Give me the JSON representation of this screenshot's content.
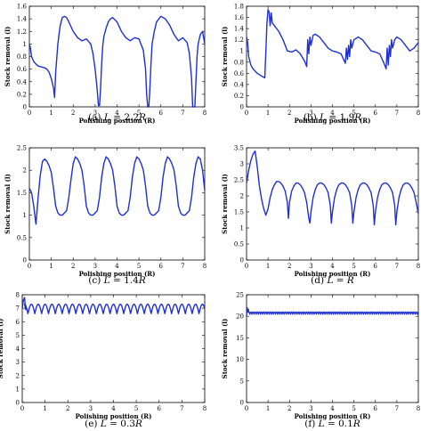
{
  "chart_data": [
    {
      "type": "line",
      "caption_prefix": "(a)",
      "caption_var": "L",
      "caption_eq": " = 2.2",
      "caption_unit": "R",
      "xlabel": "Polishing position (R)",
      "ylabel": "Stock removal (l)",
      "xlim": [
        0,
        8
      ],
      "ylim": [
        0,
        1.6
      ],
      "xticks": [
        0,
        1,
        2,
        3,
        4,
        5,
        6,
        7,
        8
      ],
      "yticks": [
        0,
        0.2,
        0.4,
        0.6,
        0.8,
        1,
        1.2,
        1.4,
        1.6
      ],
      "ytick_labels": [
        "0",
        "0.2",
        "0.4",
        "0.6",
        "0.8",
        "1",
        "1.2",
        "1.4",
        "1.6"
      ],
      "series": [
        {
          "color": "#1f2fd6",
          "x": [
            0,
            0.04,
            0.1,
            0.2,
            0.3,
            0.4,
            0.5,
            0.6,
            0.7,
            0.8,
            0.9,
            1.0,
            1.1,
            1.15,
            1.2,
            1.3,
            1.4,
            1.5,
            1.6,
            1.7,
            1.8,
            2.0,
            2.2,
            2.4,
            2.6,
            2.8,
            2.9,
            3.0,
            3.1,
            3.15,
            3.2,
            3.25,
            3.3,
            3.35,
            3.4,
            3.5,
            3.6,
            3.7,
            3.8,
            4.0,
            4.2,
            4.4,
            4.6,
            4.8,
            5.0,
            5.2,
            5.3,
            5.35,
            5.4,
            5.45,
            5.5,
            5.55,
            5.6,
            5.7,
            5.8,
            6.0,
            6.2,
            6.4,
            6.6,
            6.8,
            7.0,
            7.2,
            7.3,
            7.4,
            7.45,
            7.5,
            7.55,
            7.6,
            7.65,
            7.7,
            7.8,
            7.9,
            8.0
          ],
          "y": [
            1.0,
            0.95,
            0.8,
            0.72,
            0.68,
            0.65,
            0.64,
            0.63,
            0.62,
            0.6,
            0.55,
            0.45,
            0.3,
            0.15,
            0.55,
            1.0,
            1.28,
            1.42,
            1.44,
            1.42,
            1.35,
            1.2,
            1.1,
            1.05,
            1.08,
            1.0,
            0.85,
            0.6,
            0.25,
            0.02,
            0.02,
            0.3,
            0.7,
            0.98,
            1.12,
            1.25,
            1.35,
            1.4,
            1.42,
            1.35,
            1.2,
            1.1,
            1.05,
            1.1,
            1.08,
            0.9,
            0.6,
            0.2,
            0.0,
            0.0,
            0.3,
            0.7,
            1.0,
            1.2,
            1.35,
            1.44,
            1.4,
            1.3,
            1.15,
            1.05,
            1.1,
            1.02,
            0.85,
            0.45,
            0.0,
            0.0,
            0.0,
            0.4,
            0.8,
            1.0,
            1.15,
            1.2,
            1.0
          ]
        }
      ]
    },
    {
      "type": "line",
      "caption_prefix": "(b)",
      "caption_var": "L",
      "caption_eq": " = 1.9",
      "caption_unit": "R",
      "xlabel": "Polishing position (R)",
      "ylabel": "Stock removal (l)",
      "xlim": [
        0,
        8
      ],
      "ylim": [
        0,
        1.8
      ],
      "xticks": [
        0,
        1,
        2,
        3,
        4,
        5,
        6,
        7,
        8
      ],
      "yticks": [
        0,
        0.2,
        0.4,
        0.6,
        0.8,
        1,
        1.2,
        1.4,
        1.6,
        1.8
      ],
      "ytick_labels": [
        "0",
        "0.2",
        "0.4",
        "0.6",
        "0.8",
        "1",
        "1.2",
        "1.4",
        "1.6",
        "1.8"
      ],
      "series": [
        {
          "color": "#1f2fd6",
          "x": [
            0,
            0.05,
            0.1,
            0.2,
            0.3,
            0.5,
            0.7,
            0.85,
            0.9,
            0.95,
            1.0,
            1.05,
            1.1,
            1.15,
            1.2,
            1.3,
            1.5,
            1.7,
            1.9,
            2.1,
            2.3,
            2.5,
            2.7,
            2.8,
            2.85,
            2.9,
            2.95,
            3.0,
            3.1,
            3.2,
            3.4,
            3.6,
            3.8,
            4.0,
            4.2,
            4.4,
            4.6,
            4.65,
            4.7,
            4.75,
            4.8,
            4.85,
            4.9,
            5.0,
            5.2,
            5.4,
            5.6,
            5.8,
            6.0,
            6.2,
            6.4,
            6.5,
            6.55,
            6.6,
            6.65,
            6.7,
            6.75,
            6.8,
            6.9,
            7.0,
            7.2,
            7.4,
            7.6,
            7.8,
            8.0
          ],
          "y": [
            1.25,
            1.15,
            0.9,
            0.75,
            0.68,
            0.6,
            0.55,
            0.52,
            1.0,
            1.5,
            1.74,
            1.7,
            1.45,
            1.68,
            1.5,
            1.45,
            1.35,
            1.2,
            1.0,
            0.98,
            1.02,
            0.95,
            0.82,
            0.72,
            1.2,
            0.95,
            1.25,
            1.1,
            1.28,
            1.3,
            1.25,
            1.15,
            1.05,
            1.0,
            0.98,
            0.95,
            0.78,
            1.05,
            0.85,
            1.1,
            0.9,
            1.2,
            1.05,
            1.2,
            1.25,
            1.2,
            1.1,
            1.0,
            0.98,
            0.95,
            0.78,
            0.68,
            1.05,
            0.75,
            1.1,
            0.9,
            1.2,
            1.05,
            1.2,
            1.25,
            1.2,
            1.1,
            1.0,
            1.05,
            1.15
          ]
        }
      ]
    },
    {
      "type": "line",
      "caption_prefix": "(c)",
      "caption_var": "L",
      "caption_eq": " = 1.4",
      "caption_unit": "R",
      "xlabel": "Polishing position (R)",
      "ylabel": "Stock removal (l)",
      "xlim": [
        0,
        8
      ],
      "ylim": [
        0,
        2.5
      ],
      "xticks": [
        0,
        1,
        2,
        3,
        4,
        5,
        6,
        7,
        8
      ],
      "yticks": [
        0,
        0.5,
        1,
        1.5,
        2,
        2.5
      ],
      "ytick_labels": [
        "0",
        "0.5",
        "1",
        "1.5",
        "2",
        "2.5"
      ],
      "series": [
        {
          "color": "#1f2fd6",
          "x": [
            0,
            0.1,
            0.2,
            0.3,
            0.4,
            0.5,
            0.6,
            0.7,
            0.8,
            0.9,
            1.0,
            1.1,
            1.2,
            1.3,
            1.4,
            1.5,
            1.6,
            1.7,
            1.8,
            1.9,
            2.0,
            2.1,
            2.2,
            2.3,
            2.4,
            2.5,
            2.6,
            2.7,
            2.8,
            2.9,
            3.0,
            3.1,
            3.2,
            3.3,
            3.4,
            3.5,
            3.6,
            3.7,
            3.8,
            3.9,
            4.0,
            4.1,
            4.2,
            4.3,
            4.4,
            4.5,
            4.6,
            4.7,
            4.8,
            4.9,
            5.0,
            5.1,
            5.2,
            5.3,
            5.4,
            5.5,
            5.6,
            5.7,
            5.8,
            5.9,
            6.0,
            6.1,
            6.2,
            6.3,
            6.4,
            6.5,
            6.6,
            6.7,
            6.8,
            6.9,
            7.0,
            7.1,
            7.2,
            7.3,
            7.4,
            7.5,
            7.6,
            7.7,
            7.8,
            7.9,
            8.0
          ],
          "y": [
            1.6,
            1.5,
            1.2,
            0.8,
            1.4,
            1.9,
            2.2,
            2.25,
            2.2,
            2.1,
            1.95,
            1.6,
            1.2,
            1.05,
            1.0,
            1.0,
            1.05,
            1.1,
            1.4,
            1.8,
            2.15,
            2.3,
            2.25,
            2.15,
            2.0,
            1.65,
            1.2,
            1.05,
            1.0,
            1.0,
            1.05,
            1.1,
            1.4,
            1.85,
            2.15,
            2.3,
            2.25,
            2.15,
            2.0,
            1.65,
            1.2,
            1.05,
            1.0,
            1.0,
            1.05,
            1.1,
            1.4,
            1.85,
            2.15,
            2.3,
            2.25,
            2.15,
            2.0,
            1.65,
            1.2,
            1.05,
            1.0,
            1.0,
            1.05,
            1.1,
            1.4,
            1.85,
            2.15,
            2.3,
            2.25,
            2.15,
            2.0,
            1.65,
            1.2,
            1.05,
            1.0,
            1.0,
            1.05,
            1.1,
            1.4,
            1.85,
            2.15,
            2.3,
            2.25,
            2.0,
            1.55
          ]
        }
      ]
    },
    {
      "type": "line",
      "caption_prefix": "(d)",
      "caption_var": "L",
      "caption_eq": " = ",
      "caption_unit": "R",
      "xlabel": "Polishing position (R)",
      "ylabel": "Stock removal (l)",
      "xlim": [
        0,
        8
      ],
      "ylim": [
        0,
        3.5
      ],
      "xticks": [
        0,
        1,
        2,
        3,
        4,
        5,
        6,
        7,
        8
      ],
      "yticks": [
        0,
        0.5,
        1,
        1.5,
        2,
        2.5,
        3,
        3.5
      ],
      "ytick_labels": [
        "0",
        "0.5",
        "1",
        "1.5",
        "2",
        "2.5",
        "3",
        "3.5"
      ],
      "series": [
        {
          "color": "#1f2fd6",
          "x": [
            0,
            0.1,
            0.2,
            0.3,
            0.4,
            0.5,
            0.6,
            0.7,
            0.8,
            0.9,
            1.0,
            1.1,
            1.2,
            1.3,
            1.4,
            1.5,
            1.6,
            1.7,
            1.8,
            1.9,
            1.95,
            2.0,
            2.1,
            2.2,
            2.3,
            2.4,
            2.5,
            2.6,
            2.7,
            2.8,
            2.9,
            2.95,
            3.0,
            3.1,
            3.2,
            3.3,
            3.4,
            3.5,
            3.6,
            3.7,
            3.8,
            3.9,
            3.95,
            4.0,
            4.1,
            4.2,
            4.3,
            4.4,
            4.5,
            4.6,
            4.7,
            4.8,
            4.9,
            4.95,
            5.0,
            5.1,
            5.2,
            5.3,
            5.4,
            5.5,
            5.6,
            5.7,
            5.8,
            5.9,
            5.95,
            6.0,
            6.1,
            6.2,
            6.3,
            6.4,
            6.5,
            6.6,
            6.7,
            6.8,
            6.9,
            6.95,
            7.0,
            7.1,
            7.2,
            7.3,
            7.4,
            7.5,
            7.6,
            7.7,
            7.8,
            7.9,
            8.0
          ],
          "y": [
            2.4,
            2.8,
            3.1,
            3.3,
            3.4,
            2.9,
            2.3,
            1.9,
            1.6,
            1.4,
            1.6,
            1.95,
            2.2,
            2.35,
            2.45,
            2.45,
            2.4,
            2.3,
            2.15,
            1.8,
            1.3,
            1.8,
            2.15,
            2.3,
            2.4,
            2.4,
            2.35,
            2.25,
            2.1,
            1.8,
            1.3,
            1.15,
            1.5,
            1.95,
            2.2,
            2.35,
            2.4,
            2.4,
            2.35,
            2.25,
            2.1,
            1.7,
            1.15,
            1.5,
            1.95,
            2.2,
            2.35,
            2.4,
            2.4,
            2.35,
            2.25,
            2.1,
            1.7,
            1.15,
            1.5,
            1.95,
            2.2,
            2.35,
            2.4,
            2.4,
            2.35,
            2.25,
            2.1,
            1.7,
            1.1,
            1.5,
            1.95,
            2.2,
            2.35,
            2.4,
            2.4,
            2.35,
            2.25,
            2.1,
            1.7,
            1.1,
            1.5,
            1.95,
            2.2,
            2.35,
            2.4,
            2.4,
            2.35,
            2.25,
            2.1,
            1.8,
            1.45
          ]
        }
      ]
    },
    {
      "type": "line",
      "caption_prefix": "(e)",
      "caption_var": "L",
      "caption_eq": " = 0.3",
      "caption_unit": "R",
      "xlabel": "Polishing position (R)",
      "ylabel": "Stock removal (l)",
      "xlim": [
        0,
        8
      ],
      "ylim": [
        0,
        8
      ],
      "xticks": [
        0,
        1,
        2,
        3,
        4,
        5,
        6,
        7,
        8
      ],
      "yticks": [
        0,
        1,
        2,
        3,
        4,
        5,
        6,
        7,
        8
      ],
      "ytick_labels": [
        "0",
        "1",
        "2",
        "3",
        "4",
        "5",
        "6",
        "7",
        "8"
      ],
      "oscillation": {
        "start": 0.1,
        "end": 8.0,
        "period": 0.3,
        "min": 6.6,
        "max": 7.3,
        "initial": [
          [
            0,
            7.0
          ],
          [
            0.05,
            7.6
          ],
          [
            0.1,
            7.8
          ],
          [
            0.15,
            6.9
          ]
        ]
      },
      "series": [
        {
          "color": "#1f2fd6"
        }
      ]
    },
    {
      "type": "line",
      "caption_prefix": "(f)",
      "caption_var": "L",
      "caption_eq": " = 0.1",
      "caption_unit": "R",
      "xlabel": "Polishing position (R)",
      "ylabel": "Stock removal (l)",
      "xlim": [
        0,
        8
      ],
      "ylim": [
        0,
        25
      ],
      "xticks": [
        0,
        1,
        2,
        3,
        4,
        5,
        6,
        7,
        8
      ],
      "yticks": [
        0,
        5,
        10,
        15,
        20,
        25
      ],
      "ytick_labels": [
        "0",
        "5",
        "10",
        "15",
        "20",
        "25"
      ],
      "oscillation": {
        "start": 0.1,
        "end": 8.0,
        "period": 0.1,
        "min": 20.5,
        "max": 21.0,
        "initial": [
          [
            0,
            20.0
          ],
          [
            0.03,
            22.0
          ],
          [
            0.06,
            21.0
          ],
          [
            0.09,
            21.6
          ]
        ]
      },
      "series": [
        {
          "color": "#1f2fd6"
        }
      ]
    }
  ]
}
